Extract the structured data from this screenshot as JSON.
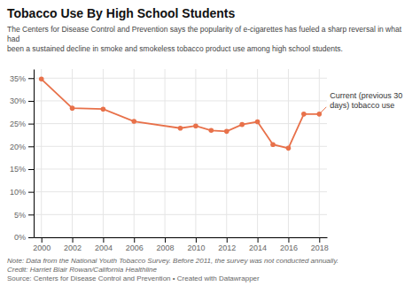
{
  "chart_data": {
    "type": "line",
    "title": "Tobacco Use By High School Students",
    "subtitle": "The Centers for Disease Control and Prevention says the popularity of e-cigarettes has fueled a sharp reversal in what had\nbeen a sustained decline in smoke and smokeless tobacco product use among high school students.",
    "x": [
      2000,
      2002,
      2004,
      2006,
      2009,
      2010,
      2011,
      2012,
      2013,
      2014,
      2015,
      2016,
      2017,
      2018
    ],
    "values": [
      34.8,
      28.4,
      28.2,
      25.5,
      24.0,
      24.5,
      23.5,
      23.3,
      24.8,
      25.4,
      20.4,
      19.6,
      27.1,
      27.1
    ],
    "color": "#e8714a",
    "marker": "circle",
    "xlim": [
      1999.5,
      2018.5
    ],
    "ylim": [
      0,
      37
    ],
    "xticks": [
      2000,
      2002,
      2004,
      2006,
      2008,
      2010,
      2012,
      2014,
      2016,
      2018
    ],
    "yticks": [
      {
        "value": 0,
        "label": "0%"
      },
      {
        "value": 5,
        "label": "5%"
      },
      {
        "value": 10,
        "label": "10%"
      },
      {
        "value": 15,
        "label": "15%"
      },
      {
        "value": 20,
        "label": "20%"
      },
      {
        "value": 25,
        "label": "25%"
      },
      {
        "value": 30,
        "label": "30%"
      },
      {
        "value": 35,
        "label": "35%"
      }
    ],
    "grid": true,
    "annotation": "Current (previous 30\ndays) tobacco use",
    "notes": [
      "Note: Data from the National Youth Tobacco Survey. Before 2011, the survey was not conducted annually.",
      "Credit: Harriet Blair Rowan/California Healthline",
      "Source: Centers for Disease Control and Prevention • Created with Datawrapper"
    ]
  }
}
